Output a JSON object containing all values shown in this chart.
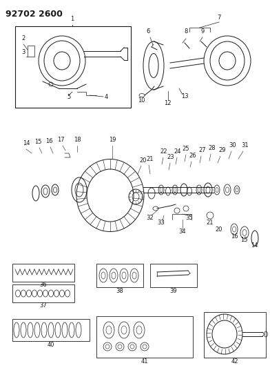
{
  "title": "92702 2600",
  "bg_color": "#ffffff",
  "line_color": "#1a1a1a",
  "title_fontsize": 9,
  "label_fontsize": 6,
  "fig_width": 3.92,
  "fig_height": 5.33,
  "dpi": 100
}
